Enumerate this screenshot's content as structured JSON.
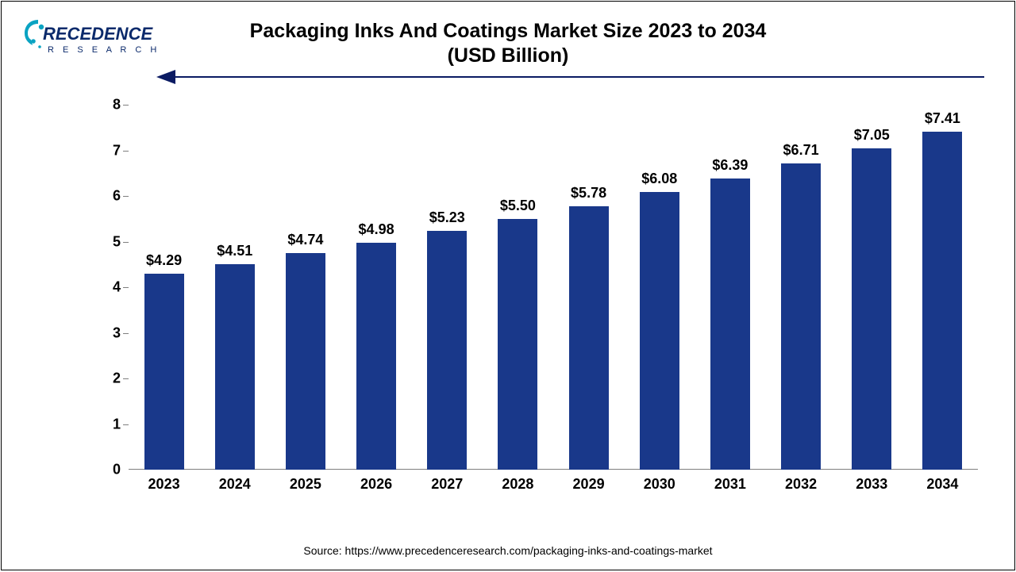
{
  "logo": {
    "text_main": "RECEDENCE",
    "text_sub": "R E S E A R C H",
    "accent_color": "#0aa3c2",
    "text_color": "#0b2a6b"
  },
  "title": {
    "line1": "Packaging Inks And Coatings Market Size 2023 to 2034",
    "line2": "(USD Billion)",
    "fontsize": 25
  },
  "chart": {
    "type": "bar",
    "categories": [
      "2023",
      "2024",
      "2025",
      "2026",
      "2027",
      "2028",
      "2029",
      "2030",
      "2031",
      "2032",
      "2033",
      "2034"
    ],
    "values": [
      4.29,
      4.51,
      4.74,
      4.98,
      5.23,
      5.5,
      5.78,
      6.08,
      6.39,
      6.71,
      7.05,
      7.41
    ],
    "value_labels": [
      "$4.29",
      "$4.51",
      "$4.74",
      "$4.98",
      "$5.23",
      "$5.50",
      "$5.78",
      "$6.08",
      "$6.39",
      "$6.71",
      "$7.05",
      "$7.41"
    ],
    "bar_color": "#19388a",
    "ylim": [
      0,
      8
    ],
    "ytick_step": 1,
    "yticks": [
      "0",
      "1",
      "2",
      "3",
      "4",
      "5",
      "6",
      "7",
      "8"
    ],
    "grid_color": "#7f7f7f",
    "background_color": "#ffffff",
    "label_fontsize": 18,
    "tick_fontsize": 18,
    "bar_width_ratio": 0.56
  },
  "arrow_color": "#0b1b63",
  "source": "Source: https://www.precedenceresearch.com/packaging-inks-and-coatings-market"
}
